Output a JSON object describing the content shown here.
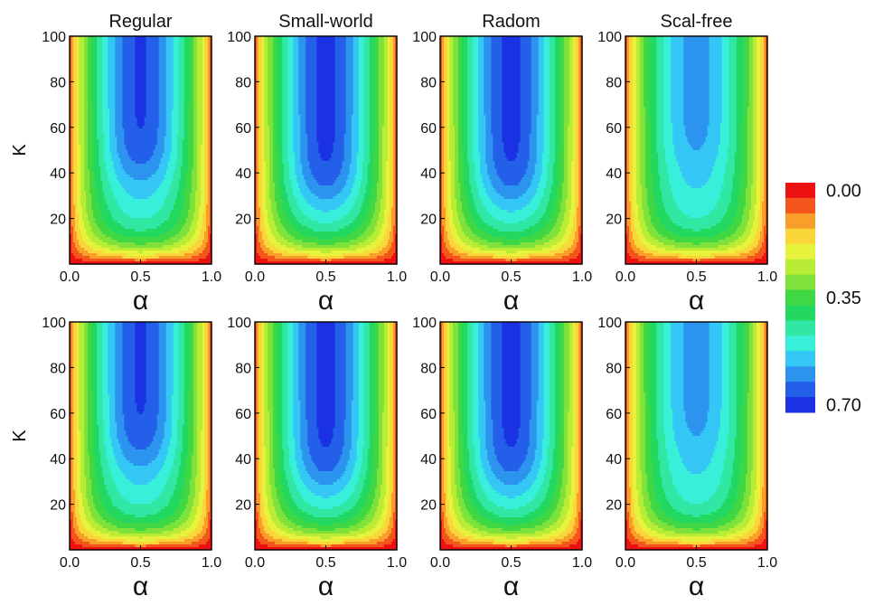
{
  "chart_data": [
    {
      "type": "heatmap",
      "title": "Regular",
      "xlabel": "α",
      "ylabel": "K",
      "x_range": [
        0.0,
        1.0
      ],
      "y_range": [
        0,
        100
      ],
      "x_ticks": [
        "0.0",
        "0.5",
        "1.0"
      ],
      "y_ticks": [
        "20",
        "40",
        "60",
        "80",
        "100"
      ],
      "valley_peak": 0.66,
      "valley_k0": 40
    },
    {
      "type": "heatmap",
      "title": "Small-world",
      "xlabel": "α",
      "ylabel": "",
      "x_range": [
        0.0,
        1.0
      ],
      "y_range": [
        0,
        100
      ],
      "x_ticks": [
        "0.0",
        "0.5",
        "1.0"
      ],
      "y_ticks": [
        "20",
        "40",
        "60",
        "80",
        "100"
      ],
      "valley_peak": 0.67,
      "valley_k0": 30
    },
    {
      "type": "heatmap",
      "title": "Radom",
      "xlabel": "α",
      "ylabel": "",
      "x_range": [
        0.0,
        1.0
      ],
      "y_range": [
        0,
        100
      ],
      "x_ticks": [
        "0.0",
        "0.5",
        "1.0"
      ],
      "y_ticks": [
        "20",
        "40",
        "60",
        "80",
        "100"
      ],
      "valley_peak": 0.67,
      "valley_k0": 30
    },
    {
      "type": "heatmap",
      "title": "Scal-free",
      "xlabel": "α",
      "ylabel": "",
      "x_range": [
        0.0,
        1.0
      ],
      "y_range": [
        0,
        100
      ],
      "x_ticks": [
        "0.0",
        "0.5",
        "1.0"
      ],
      "y_ticks": [
        "20",
        "40",
        "60",
        "80",
        "100"
      ],
      "valley_peak": 0.58,
      "valley_k0": 45
    },
    {
      "type": "heatmap",
      "title": "",
      "xlabel": "α",
      "ylabel": "K",
      "x_range": [
        0.0,
        1.0
      ],
      "y_range": [
        0,
        100
      ],
      "x_ticks": [
        "0.0",
        "0.5",
        "1.0"
      ],
      "y_ticks": [
        "20",
        "40",
        "60",
        "80",
        "100"
      ],
      "valley_peak": 0.66,
      "valley_k0": 40
    },
    {
      "type": "heatmap",
      "title": "",
      "xlabel": "α",
      "ylabel": "",
      "x_range": [
        0.0,
        1.0
      ],
      "y_range": [
        0,
        100
      ],
      "x_ticks": [
        "0.0",
        "0.5",
        "1.0"
      ],
      "y_ticks": [
        "20",
        "40",
        "60",
        "80",
        "100"
      ],
      "valley_peak": 0.67,
      "valley_k0": 30
    },
    {
      "type": "heatmap",
      "title": "",
      "xlabel": "α",
      "ylabel": "",
      "x_range": [
        0.0,
        1.0
      ],
      "y_range": [
        0,
        100
      ],
      "x_ticks": [
        "0.0",
        "0.5",
        "1.0"
      ],
      "y_ticks": [
        "20",
        "40",
        "60",
        "80",
        "100"
      ],
      "valley_peak": 0.67,
      "valley_k0": 30
    },
    {
      "type": "heatmap",
      "title": "",
      "xlabel": "α",
      "ylabel": "",
      "x_range": [
        0.0,
        1.0
      ],
      "y_range": [
        0,
        100
      ],
      "x_ticks": [
        "0.0",
        "0.5",
        "1.0"
      ],
      "y_ticks": [
        "20",
        "40",
        "60",
        "80",
        "100"
      ],
      "valley_peak": 0.58,
      "valley_k0": 45
    }
  ],
  "colorbar": {
    "labels": [
      "0.00",
      "0.35",
      "0.70"
    ],
    "range": [
      0.0,
      0.7
    ],
    "colors": [
      "#ee1111",
      "#f4551d",
      "#f99f29",
      "#fbd63a",
      "#e7f23c",
      "#b8ec35",
      "#7fe23a",
      "#40d745",
      "#23d860",
      "#30e8a3",
      "#38f0d9",
      "#34c6f5",
      "#2c93ee",
      "#235fe8",
      "#1b32e4"
    ]
  }
}
